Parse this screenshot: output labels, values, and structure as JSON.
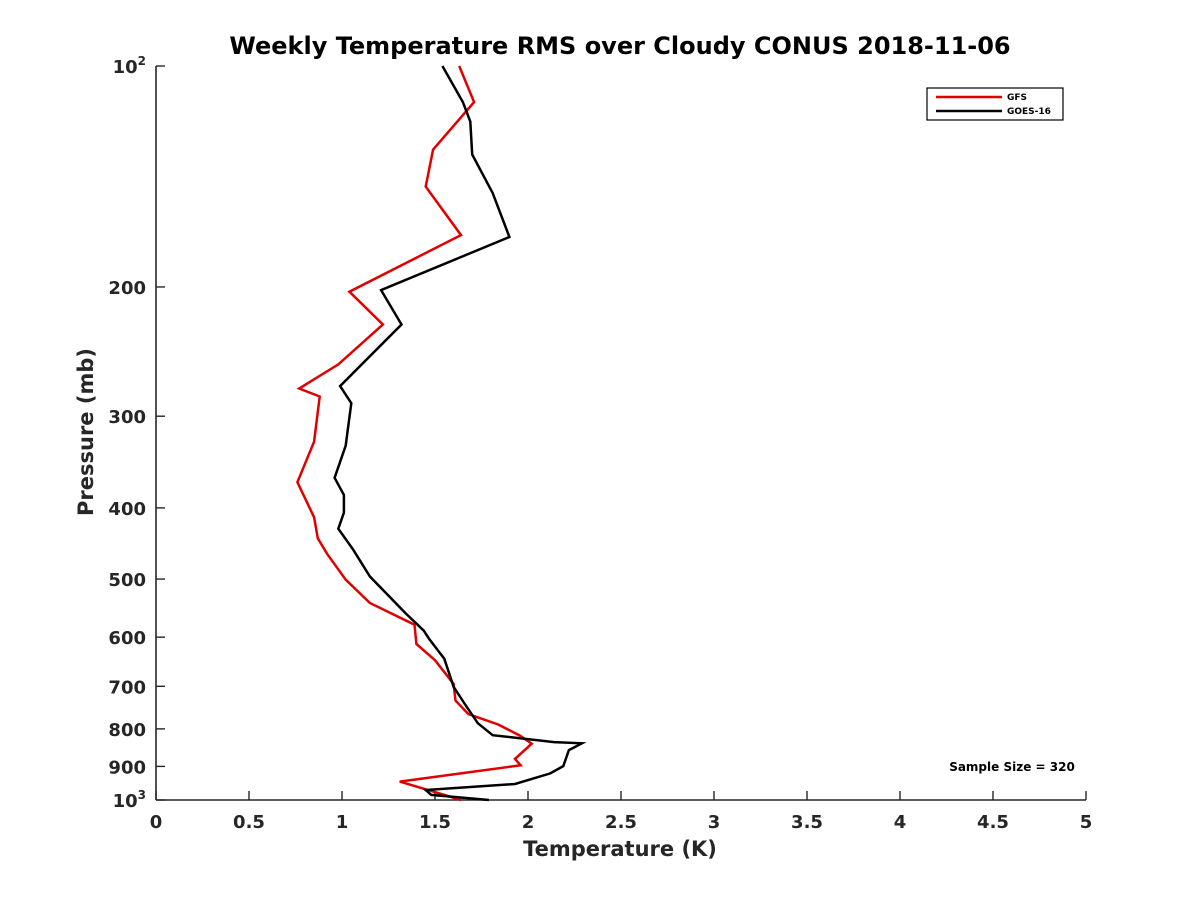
{
  "chart_data": {
    "type": "line",
    "title": "Weekly Temperature RMS over Cloudy CONUS 2018-11-06",
    "xlabel": "Temperature (K)",
    "ylabel": "Pressure (mb)",
    "xlim": [
      0,
      5
    ],
    "ylim": [
      100,
      1000
    ],
    "y_scale": "log",
    "y_reversed": true,
    "grid": false,
    "legend_position": "top-right",
    "x_ticks": [
      "0",
      "0.5",
      "1",
      "1.5",
      "2",
      "2.5",
      "3",
      "3.5",
      "4",
      "4.5",
      "5"
    ],
    "y_ticks": [
      {
        "value": 100,
        "label": "10",
        "exp": "2"
      },
      {
        "value": 200,
        "label": "200",
        "exp": ""
      },
      {
        "value": 300,
        "label": "300",
        "exp": ""
      },
      {
        "value": 400,
        "label": "400",
        "exp": ""
      },
      {
        "value": 500,
        "label": "500",
        "exp": ""
      },
      {
        "value": 600,
        "label": "600",
        "exp": ""
      },
      {
        "value": 700,
        "label": "700",
        "exp": ""
      },
      {
        "value": 800,
        "label": "800",
        "exp": ""
      },
      {
        "value": 900,
        "label": "900",
        "exp": ""
      },
      {
        "value": 1000,
        "label": "10",
        "exp": "3"
      }
    ],
    "series": [
      {
        "name": "GFS",
        "color": "#e00000",
        "x": [
          1.63,
          1.71,
          1.49,
          1.45,
          1.64,
          1.04,
          1.22,
          0.98,
          0.77,
          0.88,
          0.85,
          0.76,
          0.85,
          0.87,
          0.92,
          1.02,
          1.15,
          1.39,
          1.4,
          1.5,
          1.6,
          1.61,
          1.68,
          1.84,
          1.96,
          2.02,
          1.93,
          1.96,
          1.31,
          1.52,
          1.64
        ],
        "y": [
          100,
          112,
          130,
          146,
          170,
          203,
          225,
          255,
          275,
          282,
          325,
          369,
          412,
          440,
          462,
          501,
          539,
          577,
          613,
          645,
          695,
          732,
          764,
          789,
          818,
          838,
          879,
          897,
          944,
          979,
          1000
        ]
      },
      {
        "name": "GOES-16",
        "color": "#000000",
        "x": [
          1.54,
          1.65,
          1.69,
          1.7,
          1.81,
          1.9,
          1.21,
          1.32,
          0.99,
          1.05,
          1.02,
          0.96,
          1.01,
          1.01,
          0.98,
          1.06,
          1.15,
          1.34,
          1.44,
          1.47,
          1.55,
          1.6,
          1.66,
          1.73,
          1.81,
          2.14,
          2.29,
          2.22,
          2.19,
          2.12,
          1.93,
          1.45,
          1.48,
          1.79
        ],
        "y": [
          100,
          112,
          119,
          132,
          149,
          171,
          202,
          225,
          273,
          288,
          329,
          364,
          384,
          406,
          427,
          456,
          496,
          556,
          588,
          604,
          642,
          701,
          740,
          786,
          816,
          834,
          837,
          855,
          899,
          920,
          951,
          969,
          984,
          1000
        ]
      }
    ],
    "annotations": [
      "Sample Size = 320"
    ]
  }
}
